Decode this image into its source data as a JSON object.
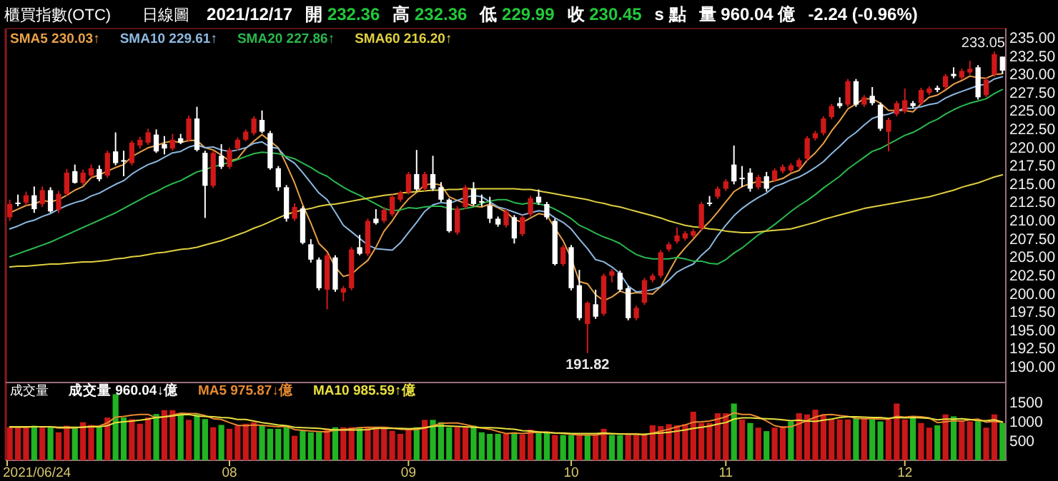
{
  "chart_data": [
    {
      "type": "candlestick",
      "title": "櫃買指數(OTC)",
      "subtitle": "日線圖",
      "annotations": [
        "2021/12/17",
        "開 232.36",
        "高 232.36",
        "低 229.99",
        "收 230.45",
        "s 點",
        "量 960.04 億",
        "-2.24 (-0.96%)",
        {
          "text": "191.82",
          "y": 191.82
        },
        "233.05"
      ],
      "categories": [
        null,
        null,
        null,
        null,
        null,
        null,
        null,
        null,
        null,
        null,
        null,
        null,
        null,
        null,
        null,
        null,
        null,
        null,
        null,
        null,
        null,
        null,
        null,
        null,
        null,
        null,
        null,
        null,
        null,
        null,
        null,
        null,
        null,
        null,
        null,
        null,
        null,
        null,
        null,
        null,
        null,
        null,
        null,
        null,
        null,
        null,
        null,
        null,
        null,
        null,
        null,
        null,
        null,
        null,
        null,
        null,
        null,
        null,
        null,
        null,
        null,
        null,
        null,
        null,
        null,
        null,
        null,
        null,
        null,
        null,
        null,
        null,
        null,
        null,
        null,
        null,
        null,
        null,
        null,
        null,
        null,
        null,
        null,
        null,
        null,
        null,
        null,
        null,
        null,
        null,
        null,
        null,
        null,
        null,
        null,
        null,
        null,
        null,
        null,
        null,
        null,
        null,
        null,
        null,
        null,
        null,
        null,
        null,
        null,
        null,
        null,
        null,
        null,
        null,
        null,
        null,
        null,
        null,
        null,
        null,
        null,
        null,
        null
      ],
      "tick_labels": "y",
      "ohlc": [
        [
          210.4,
          212.8,
          209.9,
          212.2
        ],
        [
          212.4,
          213.5,
          211.9,
          212.3
        ],
        [
          212.4,
          213.9,
          212.0,
          213.4
        ],
        [
          213.4,
          214.6,
          211.0,
          211.5
        ],
        [
          212.2,
          214.6,
          211.8,
          214.1
        ],
        [
          214.1,
          214.5,
          211.0,
          211.2
        ],
        [
          211.4,
          214.0,
          211.0,
          213.6
        ],
        [
          213.6,
          217.0,
          213.3,
          216.5
        ],
        [
          216.7,
          217.6,
          215.0,
          215.1
        ],
        [
          215.1,
          216.9,
          214.8,
          216.5
        ],
        [
          216.1,
          217.6,
          215.8,
          217.1
        ],
        [
          217.0,
          217.5,
          215.3,
          215.6
        ],
        [
          216.1,
          219.5,
          215.8,
          219.2
        ],
        [
          219.4,
          222.0,
          217.5,
          217.8
        ],
        [
          218.2,
          219.5,
          216.0,
          218.1
        ],
        [
          217.8,
          220.9,
          217.5,
          220.6
        ],
        [
          220.2,
          221.4,
          219.8,
          221.0
        ],
        [
          220.6,
          222.5,
          220.3,
          222.0
        ],
        [
          221.7,
          222.4,
          219.2,
          219.4
        ],
        [
          220.4,
          221.5,
          219.0,
          219.8
        ],
        [
          219.8,
          221.8,
          219.5,
          221.0
        ],
        [
          221.2,
          221.8,
          220.4,
          220.6
        ],
        [
          221.0,
          224.3,
          220.7,
          223.9
        ],
        [
          223.9,
          225.5,
          219.4,
          219.6
        ],
        [
          219.2,
          219.5,
          210.3,
          214.7
        ],
        [
          214.7,
          219.5,
          214.4,
          219.2
        ],
        [
          218.8,
          220.4,
          217.0,
          217.3
        ],
        [
          217.3,
          219.9,
          217.0,
          219.6
        ],
        [
          219.8,
          221.3,
          219.5,
          221.0
        ],
        [
          221.0,
          222.4,
          220.8,
          222.1
        ],
        [
          221.9,
          224.2,
          221.6,
          223.9
        ],
        [
          223.7,
          225.0,
          221.9,
          222.1
        ],
        [
          221.9,
          222.2,
          216.9,
          217.1
        ],
        [
          217.1,
          217.4,
          214.0,
          214.5
        ],
        [
          214.5,
          214.8,
          209.8,
          210.2
        ],
        [
          210.2,
          212.3,
          209.9,
          211.8
        ],
        [
          211.6,
          211.9,
          206.7,
          206.9
        ],
        [
          206.7,
          207.4,
          204.2,
          204.6
        ],
        [
          204.6,
          204.9,
          200.4,
          200.7
        ],
        [
          200.5,
          205.5,
          197.8,
          205.2
        ],
        [
          204.9,
          205.2,
          200.2,
          200.5
        ],
        [
          200.1,
          201.0,
          198.9,
          200.7
        ],
        [
          200.7,
          206.3,
          200.4,
          206.0
        ],
        [
          206.3,
          208.0,
          205.2,
          205.4
        ],
        [
          205.4,
          210.2,
          205.1,
          209.9
        ],
        [
          210.2,
          211.5,
          209.4,
          209.6
        ],
        [
          209.9,
          211.8,
          209.6,
          211.4
        ],
        [
          210.8,
          213.5,
          210.5,
          213.2
        ],
        [
          212.8,
          214.0,
          212.5,
          213.8
        ],
        [
          213.8,
          216.6,
          213.5,
          216.3
        ],
        [
          216.3,
          219.6,
          214.0,
          214.2
        ],
        [
          214.3,
          216.6,
          214.0,
          216.3
        ],
        [
          216.3,
          218.8,
          214.0,
          214.3
        ],
        [
          214.5,
          215.2,
          212.5,
          212.8
        ],
        [
          212.8,
          213.0,
          208.3,
          208.5
        ],
        [
          208.3,
          211.9,
          208.0,
          211.6
        ],
        [
          211.8,
          214.8,
          211.5,
          214.5
        ],
        [
          214.3,
          215.2,
          212.0,
          212.2
        ],
        [
          212.6,
          213.5,
          211.9,
          212.4
        ],
        [
          212.0,
          213.2,
          209.6,
          210.2
        ],
        [
          210.2,
          210.5,
          209.1,
          209.4
        ],
        [
          209.3,
          211.5,
          209.0,
          211.2
        ],
        [
          210.4,
          210.7,
          206.8,
          207.5
        ],
        [
          208.1,
          210.7,
          207.8,
          210.4
        ],
        [
          210.8,
          213.3,
          210.5,
          213.0
        ],
        [
          213.2,
          214.2,
          212.1,
          212.4
        ],
        [
          212.2,
          212.5,
          210.1,
          210.4
        ],
        [
          209.9,
          210.2,
          203.8,
          204.0
        ],
        [
          204.0,
          206.6,
          203.7,
          206.3
        ],
        [
          206.3,
          206.6,
          200.4,
          200.7
        ],
        [
          201.1,
          203.2,
          196.3,
          196.6
        ],
        [
          195.8,
          198.9,
          191.82,
          198.7
        ],
        [
          198.5,
          200.5,
          196.5,
          196.8
        ],
        [
          197.2,
          202.7,
          196.9,
          202.4
        ],
        [
          202.4,
          203.3,
          201.5,
          203.0
        ],
        [
          202.8,
          203.1,
          200.2,
          200.5
        ],
        [
          200.7,
          201.0,
          196.3,
          196.6
        ],
        [
          196.6,
          198.3,
          196.3,
          198.0
        ],
        [
          198.7,
          202.1,
          198.4,
          201.8
        ],
        [
          201.8,
          202.7,
          201.5,
          202.4
        ],
        [
          202.4,
          205.9,
          202.1,
          205.6
        ],
        [
          206.0,
          207.0,
          205.7,
          206.7
        ],
        [
          207.1,
          209.0,
          206.8,
          207.9
        ],
        [
          207.5,
          208.5,
          207.2,
          208.2
        ],
        [
          207.9,
          208.8,
          207.6,
          208.5
        ],
        [
          208.9,
          212.5,
          208.6,
          212.2
        ],
        [
          212.4,
          213.3,
          211.9,
          212.3
        ],
        [
          213.2,
          214.6,
          212.9,
          214.3
        ],
        [
          214.3,
          215.6,
          214.0,
          215.3
        ],
        [
          217.6,
          220.2,
          214.9,
          215.3
        ],
        [
          215.8,
          217.4,
          214.5,
          215.6
        ],
        [
          216.5,
          217.1,
          213.9,
          214.3
        ],
        [
          214.5,
          216.2,
          214.2,
          215.9
        ],
        [
          216.0,
          216.6,
          213.9,
          214.3
        ],
        [
          215.5,
          217.1,
          215.2,
          216.8
        ],
        [
          216.7,
          217.6,
          216.4,
          217.3
        ],
        [
          216.8,
          217.8,
          216.5,
          217.5
        ],
        [
          217.3,
          218.5,
          217.0,
          218.2
        ],
        [
          218.4,
          221.5,
          218.1,
          221.2
        ],
        [
          221.2,
          222.2,
          220.9,
          221.9
        ],
        [
          221.9,
          224.2,
          221.6,
          223.9
        ],
        [
          224.1,
          225.9,
          223.8,
          225.6
        ],
        [
          226.0,
          226.8,
          225.3,
          225.6
        ],
        [
          225.8,
          229.3,
          225.5,
          229.0
        ],
        [
          229.0,
          229.3,
          225.5,
          225.8
        ],
        [
          225.8,
          227.1,
          225.5,
          226.8
        ],
        [
          227.0,
          228.2,
          225.7,
          226.0
        ],
        [
          225.8,
          226.1,
          222.2,
          222.5
        ],
        [
          222.1,
          224.0,
          219.4,
          223.7
        ],
        [
          224.5,
          226.3,
          224.2,
          226.0
        ],
        [
          224.9,
          228.0,
          224.6,
          226.4
        ],
        [
          226.0,
          226.3,
          225.3,
          225.6
        ],
        [
          226.0,
          228.1,
          225.7,
          227.8
        ],
        [
          227.4,
          228.3,
          227.1,
          228.0
        ],
        [
          228.1,
          228.4,
          227.5,
          227.8
        ],
        [
          228.2,
          230.0,
          227.9,
          229.7
        ],
        [
          230.0,
          230.9,
          229.4,
          229.7
        ],
        [
          229.5,
          230.7,
          229.2,
          230.4
        ],
        [
          230.2,
          231.8,
          229.9,
          230.7
        ],
        [
          230.9,
          231.2,
          226.5,
          226.8
        ],
        [
          227.1,
          229.5,
          226.8,
          229.2
        ],
        [
          229.9,
          233.05,
          229.6,
          232.7
        ],
        [
          232.36,
          232.36,
          229.99,
          230.45
        ]
      ],
      "series": [
        {
          "type": "line",
          "name": "SMA5 230.03↑",
          "color": "#e8a048",
          "values": [
            211.0,
            211.5,
            212.0,
            212.2,
            212.7,
            212.5,
            212.8,
            213.4,
            214.1,
            214.6,
            215.8,
            216.2,
            216.7,
            217.2,
            217.6,
            218.7,
            219.3,
            219.9,
            220.2,
            220.6,
            220.8,
            220.6,
            220.9,
            220.9,
            219.9,
            219.6,
            218.9,
            218.1,
            218.4,
            219.8,
            220.8,
            221.7,
            220.8,
            219.9,
            217.6,
            215.1,
            212.1,
            209.6,
            206.8,
            205.7,
            203.6,
            202.3,
            202.6,
            203.6,
            204.5,
            206.3,
            208.5,
            209.9,
            211.6,
            212.9,
            213.8,
            214.8,
            215.0,
            214.8,
            213.2,
            212.7,
            212.3,
            211.9,
            211.8,
            212.2,
            211.7,
            211.1,
            210.1,
            209.7,
            210.3,
            210.9,
            210.7,
            208.9,
            207.2,
            204.8,
            201.6,
            201.3,
            199.8,
            199.0,
            199.5,
            200.3,
            199.9,
            200.1,
            200.0,
            199.9,
            200.9,
            202.9,
            204.9,
            206.2,
            207.4,
            208.7,
            209.8,
            211.1,
            212.5,
            213.9,
            214.6,
            215.0,
            215.3,
            215.1,
            215.4,
            215.7,
            216.4,
            216.8,
            218.2,
            219.2,
            220.5,
            222.2,
            223.6,
            225.2,
            225.9,
            226.6,
            226.6,
            226.0,
            225.0,
            225.0,
            225.0,
            224.8,
            225.9,
            226.8,
            227.1,
            227.8,
            228.6,
            229.1,
            229.7,
            229.5,
            229.4,
            229.9,
            230.03
          ]
        },
        {
          "type": "line",
          "name": "SMA10 229.61↑",
          "color": "#8cb8e0",
          "values": [
            208.8,
            209.2,
            209.7,
            210.0,
            210.5,
            210.9,
            211.5,
            212.0,
            212.4,
            212.7,
            213.3,
            213.7,
            214.3,
            214.9,
            215.4,
            216.3,
            217.0,
            217.6,
            218.0,
            218.6,
            219.2,
            219.4,
            220.0,
            220.3,
            219.9,
            220.0,
            219.6,
            219.4,
            219.6,
            219.9,
            220.5,
            220.7,
            220.0,
            219.8,
            218.5,
            217.8,
            216.5,
            215.1,
            213.7,
            212.8,
            211.1,
            209.3,
            208.4,
            207.5,
            206.6,
            206.1,
            206.0,
            205.9,
            206.9,
            208.3,
            209.7,
            211.2,
            212.1,
            212.4,
            212.3,
            212.7,
            213.1,
            213.4,
            213.2,
            212.5,
            211.8,
            211.5,
            211.1,
            210.7,
            211.0,
            211.3,
            211.1,
            210.3,
            209.7,
            208.8,
            207.4,
            206.1,
            204.6,
            204.3,
            203.6,
            202.7,
            201.0,
            200.2,
            200.3,
            200.5,
            200.9,
            201.8,
            202.9,
            203.5,
            204.0,
            205.2,
            206.2,
            207.9,
            209.3,
            210.6,
            211.6,
            212.4,
            213.1,
            213.7,
            214.6,
            215.0,
            215.5,
            215.9,
            216.5,
            217.2,
            218.0,
            219.1,
            220.1,
            221.2,
            222.0,
            223.0,
            223.9,
            224.3,
            224.5,
            224.9,
            225.3,
            225.3,
            225.5,
            225.8,
            226.0,
            226.7,
            227.2,
            227.6,
            228.0,
            228.4,
            228.6,
            229.3,
            229.61
          ]
        },
        {
          "type": "line",
          "name": "SMA20 227.86↑",
          "color": "#2ab84c",
          "values": [
            205.0,
            205.4,
            205.8,
            206.2,
            206.6,
            207.0,
            207.5,
            208.0,
            208.5,
            209.0,
            209.5,
            210.0,
            210.5,
            211.0,
            211.6,
            212.2,
            212.8,
            213.4,
            213.9,
            214.5,
            215.0,
            215.4,
            216.0,
            216.6,
            216.9,
            217.3,
            217.6,
            217.9,
            218.3,
            218.7,
            219.1,
            219.3,
            219.2,
            219.1,
            218.7,
            218.4,
            217.8,
            217.2,
            216.5,
            216.0,
            215.2,
            214.5,
            213.9,
            213.4,
            212.8,
            212.2,
            211.6,
            211.3,
            211.4,
            211.7,
            211.6,
            211.8,
            211.9,
            211.9,
            211.6,
            211.4,
            211.6,
            211.8,
            212.3,
            212.6,
            212.8,
            212.8,
            212.4,
            212.2,
            212.4,
            212.2,
            212.0,
            211.5,
            210.9,
            210.2,
            209.3,
            208.8,
            208.2,
            207.7,
            207.3,
            206.8,
            206.0,
            205.3,
            204.9,
            204.7,
            204.7,
            204.7,
            204.9,
            204.7,
            204.4,
            204.4,
            204.1,
            204.0,
            204.6,
            205.5,
            206.2,
            207.1,
            208.0,
            208.6,
            209.4,
            210.3,
            211.2,
            212.0,
            212.7,
            213.5,
            214.4,
            215.2,
            216.0,
            217.0,
            217.8,
            218.6,
            219.4,
            219.8,
            220.4,
            221.0,
            221.6,
            222.0,
            222.6,
            223.3,
            223.8,
            224.5,
            225.1,
            225.6,
            226.0,
            226.3,
            226.6,
            227.3,
            227.86
          ]
        },
        {
          "type": "line",
          "name": "SMA60 216.20↑",
          "color": "#e0d040",
          "values": [
            203.6,
            203.7,
            203.7,
            203.8,
            203.9,
            204.0,
            204.0,
            204.1,
            204.2,
            204.3,
            204.3,
            204.4,
            204.5,
            204.7,
            204.8,
            205.0,
            205.1,
            205.3,
            205.5,
            205.6,
            205.8,
            206.0,
            206.1,
            206.3,
            206.6,
            206.9,
            207.2,
            207.6,
            208.0,
            208.4,
            208.9,
            209.3,
            209.8,
            210.3,
            210.8,
            211.1,
            211.4,
            211.6,
            211.9,
            212.1,
            212.2,
            212.4,
            212.6,
            212.8,
            213.0,
            213.2,
            213.4,
            213.5,
            213.7,
            213.8,
            213.9,
            214.0,
            214.1,
            214.1,
            214.2,
            214.2,
            214.3,
            214.3,
            214.3,
            214.3,
            214.3,
            214.3,
            214.3,
            214.2,
            214.2,
            214.0,
            213.8,
            213.6,
            213.4,
            213.2,
            213.0,
            212.8,
            212.5,
            212.3,
            212.0,
            211.8,
            211.5,
            211.2,
            210.9,
            210.6,
            210.3,
            209.9,
            209.6,
            209.3,
            209.1,
            209.0,
            208.8,
            208.7,
            208.5,
            208.4,
            208.3,
            208.3,
            208.4,
            208.5,
            208.6,
            208.7,
            208.8,
            209.1,
            209.4,
            209.7,
            210.1,
            210.4,
            210.7,
            211.0,
            211.3,
            211.6,
            211.8,
            212.0,
            212.2,
            212.4,
            212.6,
            212.8,
            213.0,
            213.2,
            213.5,
            213.8,
            214.1,
            214.5,
            214.8,
            215.1,
            215.5,
            215.9,
            216.2
          ]
        }
      ],
      "ylim": [
        187.8,
        236.2
      ],
      "yticks": [
        {
          "value": 190,
          "label": "190.00"
        },
        {
          "value": 192.5,
          "label": "192.50"
        },
        {
          "value": 195,
          "label": "195.00"
        },
        {
          "value": 197.5,
          "label": "197.50"
        },
        {
          "value": 200,
          "label": "200.00"
        },
        {
          "value": 202.5,
          "label": "202.50"
        },
        {
          "value": 205,
          "label": "205.00"
        },
        {
          "value": 207.5,
          "label": "207.50"
        },
        {
          "value": 210,
          "label": "210.00"
        },
        {
          "value": 212.5,
          "label": "212.50"
        },
        {
          "value": 215,
          "label": "215.00"
        },
        {
          "value": 217.5,
          "label": "217.50"
        },
        {
          "value": 220,
          "label": "220.00"
        },
        {
          "value": 222.5,
          "label": "222.50"
        },
        {
          "value": 225,
          "label": "225.00"
        },
        {
          "value": 227.5,
          "label": "227.50"
        },
        {
          "value": 230,
          "label": "230.00"
        },
        {
          "value": 232.5,
          "label": "232.50"
        },
        {
          "value": 235,
          "label": "235.00"
        }
      ],
      "legend": "top left"
    },
    {
      "type": "bar",
      "ylabel": "成交量",
      "annotations": [
        "2021/06/24"
      ],
      "categories": [
        null,
        null,
        null,
        null,
        null,
        null,
        null,
        null,
        null,
        null,
        null,
        null,
        null,
        null,
        null,
        null,
        null,
        null,
        null,
        null,
        null,
        null,
        null,
        null,
        null,
        null,
        null,
        "08",
        null,
        null,
        null,
        null,
        null,
        null,
        null,
        null,
        null,
        null,
        null,
        null,
        null,
        null,
        null,
        null,
        null,
        null,
        null,
        null,
        null,
        "09",
        null,
        null,
        null,
        null,
        null,
        null,
        null,
        null,
        null,
        null,
        null,
        null,
        null,
        null,
        null,
        null,
        null,
        null,
        null,
        "10",
        null,
        null,
        null,
        null,
        null,
        null,
        null,
        null,
        null,
        null,
        null,
        null,
        null,
        null,
        null,
        null,
        null,
        null,
        "11",
        null,
        null,
        null,
        null,
        null,
        null,
        null,
        null,
        null,
        null,
        null,
        null,
        null,
        null,
        null,
        null,
        null,
        null,
        null,
        null,
        null,
        "12",
        null,
        null,
        null,
        null,
        null,
        null,
        null,
        null,
        null,
        null,
        null,
        null
      ],
      "series": [
        {
          "type": "bar",
          "name": "成交量 960.04↓億",
          "values": [
            850,
            850,
            850,
            890,
            850,
            850,
            720,
            890,
            850,
            980,
            910,
            850,
            1100,
            1700,
            1100,
            1060,
            940,
            1100,
            1190,
            1290,
            1290,
            1190,
            1040,
            1190,
            1060,
            850,
            910,
            810,
            890,
            940,
            980,
            890,
            810,
            810,
            850,
            630,
            760,
            720,
            720,
            810,
            850,
            850,
            850,
            850,
            850,
            850,
            850,
            760,
            680,
            810,
            850,
            1040,
            1040,
            980,
            850,
            850,
            850,
            890,
            720,
            680,
            680,
            680,
            720,
            660,
            790,
            710,
            710,
            650,
            650,
            650,
            650,
            650,
            650,
            810,
            650,
            650,
            650,
            650,
            650,
            900,
            880,
            930,
            900,
            930,
            1250,
            960,
            960,
            1210,
            1210,
            1460,
            1050,
            960,
            840,
            750,
            840,
            880,
            1000,
            1210,
            1180,
            1300,
            1180,
            1050,
            1050,
            1050,
            1090,
            1090,
            1050,
            1000,
            1050,
            1460,
            1050,
            1090,
            960,
            840,
            900,
            1180,
            1130,
            1000,
            1000,
            1000,
            840,
            1180,
            960.04
          ],
          "colors": [
            "#c81818",
            "#c81818",
            "#c81818",
            "#22b422",
            "#c81818",
            "#22b422",
            "#c81818",
            "#c81818",
            "#22b422",
            "#c81818",
            "#c81818",
            "#22b422",
            "#c81818",
            "#22b422",
            "#22b422",
            "#c81818",
            "#c81818",
            "#c81818",
            "#22b422",
            "#c81818",
            "#c81818",
            "#22b422",
            "#c81818",
            "#22b422",
            "#22b422",
            "#c81818",
            "#22b422",
            "#c81818",
            "#c81818",
            "#c81818",
            "#c81818",
            "#22b422",
            "#22b422",
            "#22b422",
            "#22b422",
            "#c81818",
            "#22b422",
            "#22b422",
            "#22b422",
            "#c81818",
            "#22b422",
            "#c81818",
            "#c81818",
            "#22b422",
            "#c81818",
            "#c81818",
            "#c81818",
            "#c81818",
            "#c81818",
            "#c81818",
            "#22b422",
            "#c81818",
            "#22b422",
            "#22b422",
            "#22b422",
            "#c81818",
            "#c81818",
            "#22b422",
            "#22b422",
            "#22b422",
            "#22b422",
            "#c81818",
            "#22b422",
            "#c81818",
            "#c81818",
            "#22b422",
            "#22b422",
            "#c81818",
            "#22b422",
            "#22b422",
            "#c81818",
            "#22b422",
            "#c81818",
            "#c81818",
            "#22b422",
            "#22b422",
            "#c81818",
            "#c81818",
            "#c81818",
            "#c81818",
            "#c81818",
            "#c81818",
            "#c81818",
            "#c81818",
            "#c81818",
            "#c81818",
            "#c81818",
            "#c81818",
            "#c81818",
            "#22b422",
            "#c81818",
            "#22b422",
            "#c81818",
            "#22b422",
            "#c81818",
            "#c81818",
            "#22b422",
            "#c81818",
            "#c81818",
            "#c81818",
            "#c81818",
            "#c81818",
            "#c81818",
            "#c81818",
            "#22b422",
            "#c81818",
            "#22b422",
            "#22b422",
            "#c81818",
            "#c81818",
            "#c81818",
            "#22b422",
            "#c81818",
            "#c81818",
            "#22b422",
            "#c81818",
            "#22b422",
            "#c81818",
            "#c81818",
            "#22b422",
            "#c81818",
            "#c81818",
            "#22b422"
          ]
        },
        {
          "type": "line",
          "name": "MA5 975.87↓億",
          "color": "#e88a30",
          "values": [
            850,
            850,
            850,
            860,
            860,
            860,
            830,
            830,
            830,
            860,
            870,
            880,
            960,
            1110,
            1130,
            1160,
            1180,
            1180,
            1090,
            1120,
            1160,
            1210,
            1200,
            1200,
            1150,
            1070,
            1050,
            970,
            900,
            890,
            910,
            900,
            880,
            860,
            870,
            790,
            770,
            750,
            740,
            730,
            780,
            790,
            810,
            840,
            850,
            850,
            850,
            830,
            800,
            790,
            790,
            830,
            890,
            950,
            960,
            960,
            920,
            870,
            830,
            800,
            740,
            690,
            700,
            690,
            710,
            720,
            730,
            700,
            690,
            670,
            650,
            650,
            650,
            680,
            680,
            680,
            680,
            680,
            650,
            700,
            750,
            800,
            860,
            910,
            980,
            990,
            1010,
            1060,
            1120,
            1220,
            1180,
            1180,
            1110,
            1010,
            890,
            850,
            860,
            940,
            1020,
            1110,
            1170,
            1180,
            1150,
            1130,
            1080,
            1070,
            1070,
            1060,
            1060,
            1130,
            1110,
            1130,
            1120,
            1090,
            970,
            990,
            1020,
            1010,
            1040,
            1060,
            980,
            1000,
            975.87
          ]
        },
        {
          "type": "line",
          "name": "MA10 985.59↑億",
          "color": "#e8e040",
          "values": [
            860,
            860,
            860,
            860,
            860,
            860,
            850,
            850,
            850,
            850,
            860,
            860,
            890,
            970,
            990,
            1010,
            1030,
            1060,
            1100,
            1120,
            1140,
            1170,
            1180,
            1140,
            1130,
            1120,
            1100,
            1090,
            1050,
            1050,
            1010,
            970,
            940,
            910,
            890,
            850,
            840,
            830,
            820,
            800,
            780,
            780,
            780,
            780,
            790,
            820,
            820,
            820,
            820,
            810,
            820,
            840,
            870,
            890,
            880,
            870,
            860,
            850,
            840,
            840,
            830,
            810,
            800,
            760,
            750,
            730,
            710,
            700,
            700,
            690,
            690,
            690,
            690,
            700,
            690,
            680,
            670,
            670,
            670,
            690,
            700,
            720,
            750,
            780,
            820,
            850,
            880,
            930,
            970,
            1060,
            1090,
            1090,
            1080,
            1070,
            1060,
            1040,
            1020,
            1030,
            1010,
            1000,
            1030,
            1060,
            1100,
            1120,
            1120,
            1110,
            1100,
            1100,
            1080,
            1100,
            1090,
            1100,
            1090,
            1080,
            1040,
            1060,
            1060,
            1070,
            1050,
            1020,
            1020,
            1040,
            985.59
          ]
        }
      ],
      "ylim": [
        0,
        2000
      ],
      "yticks": [
        500,
        1000,
        1500
      ],
      "legend": "top left"
    }
  ]
}
